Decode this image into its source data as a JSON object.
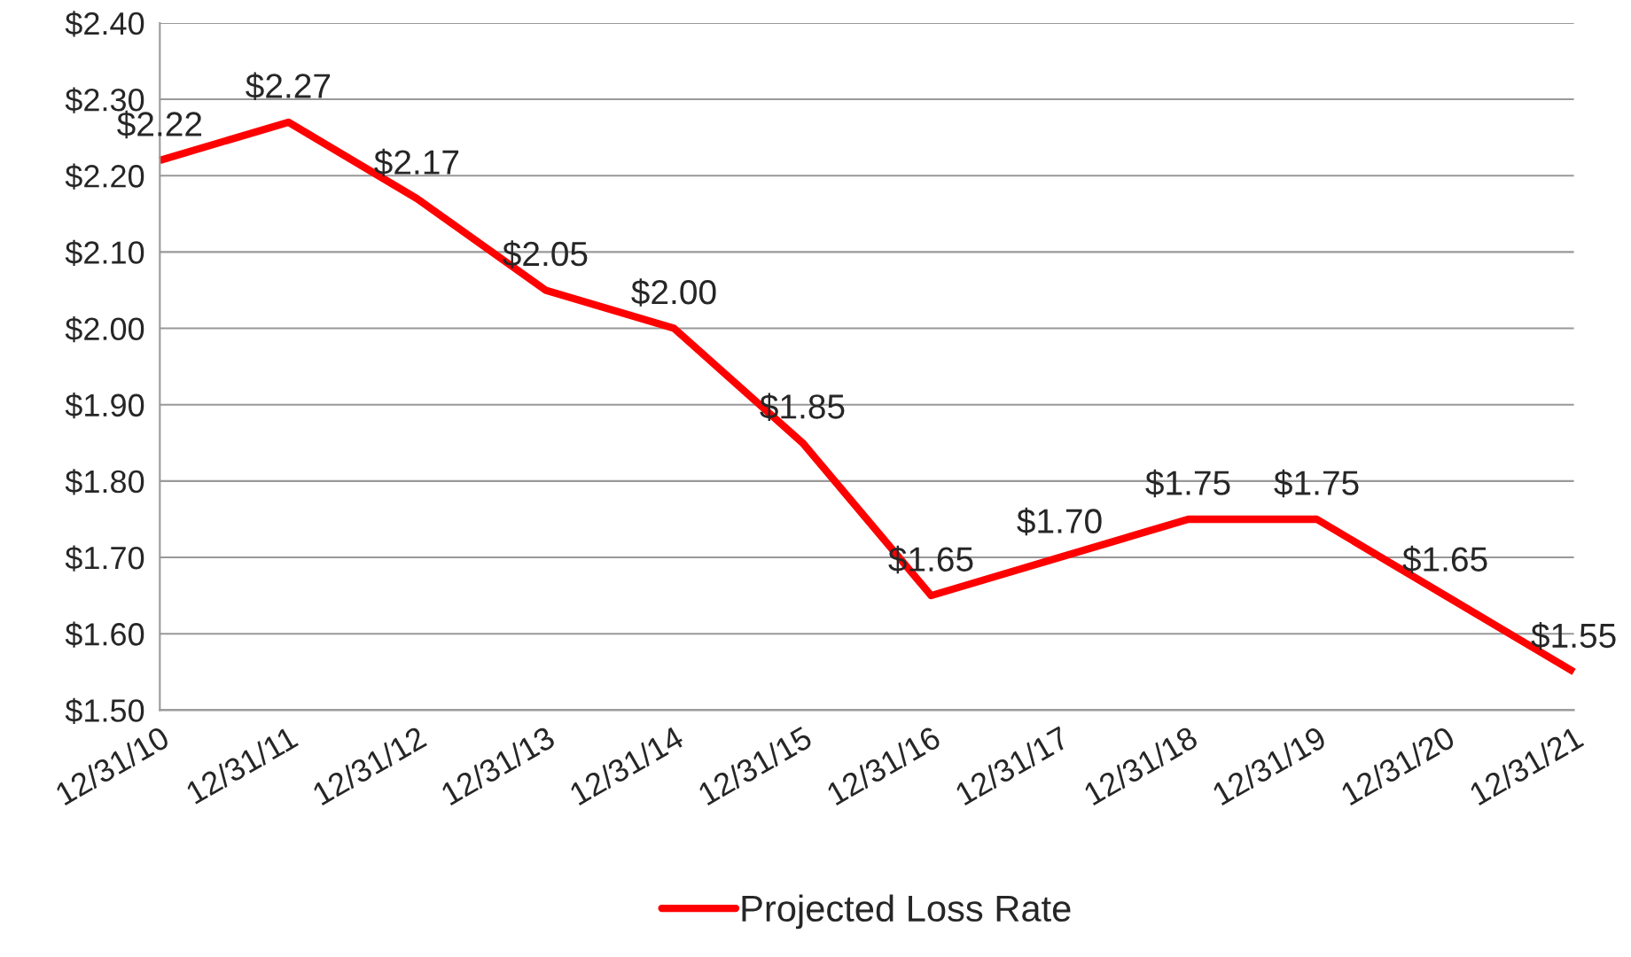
{
  "chart_data": {
    "type": "line",
    "categories": [
      "12/31/10",
      "12/31/11",
      "12/31/12",
      "12/31/13",
      "12/31/14",
      "12/31/15",
      "12/31/16",
      "12/31/17",
      "12/31/18",
      "12/31/19",
      "12/31/20",
      "12/31/21"
    ],
    "series": [
      {
        "name": "Projected Loss Rate",
        "color": "#ff0000",
        "values": [
          2.22,
          2.27,
          2.17,
          2.05,
          2.0,
          1.85,
          1.65,
          1.7,
          1.75,
          1.75,
          1.65,
          1.55
        ]
      }
    ],
    "value_labels": [
      "$2.22",
      "$2.27",
      "$2.17",
      "$2.05",
      "$2.00",
      "$1.85",
      "$1.65",
      "$1.70",
      "$1.75",
      "$1.75",
      "$1.65",
      "$1.55"
    ],
    "ylim": [
      1.5,
      2.4
    ],
    "yticks": [
      {
        "value": 1.5,
        "label": "$1.50"
      },
      {
        "value": 1.6,
        "label": "$1.60"
      },
      {
        "value": 1.7,
        "label": "$1.70"
      },
      {
        "value": 1.8,
        "label": "$1.80"
      },
      {
        "value": 1.9,
        "label": "$1.90"
      },
      {
        "value": 2.0,
        "label": "$2.00"
      },
      {
        "value": 2.1,
        "label": "$2.10"
      },
      {
        "value": 2.2,
        "label": "$2.20"
      },
      {
        "value": 2.3,
        "label": "$2.30"
      },
      {
        "value": 2.4,
        "label": "$2.40"
      }
    ],
    "grid": "y",
    "legend": "bottom",
    "line_style": "solid"
  }
}
